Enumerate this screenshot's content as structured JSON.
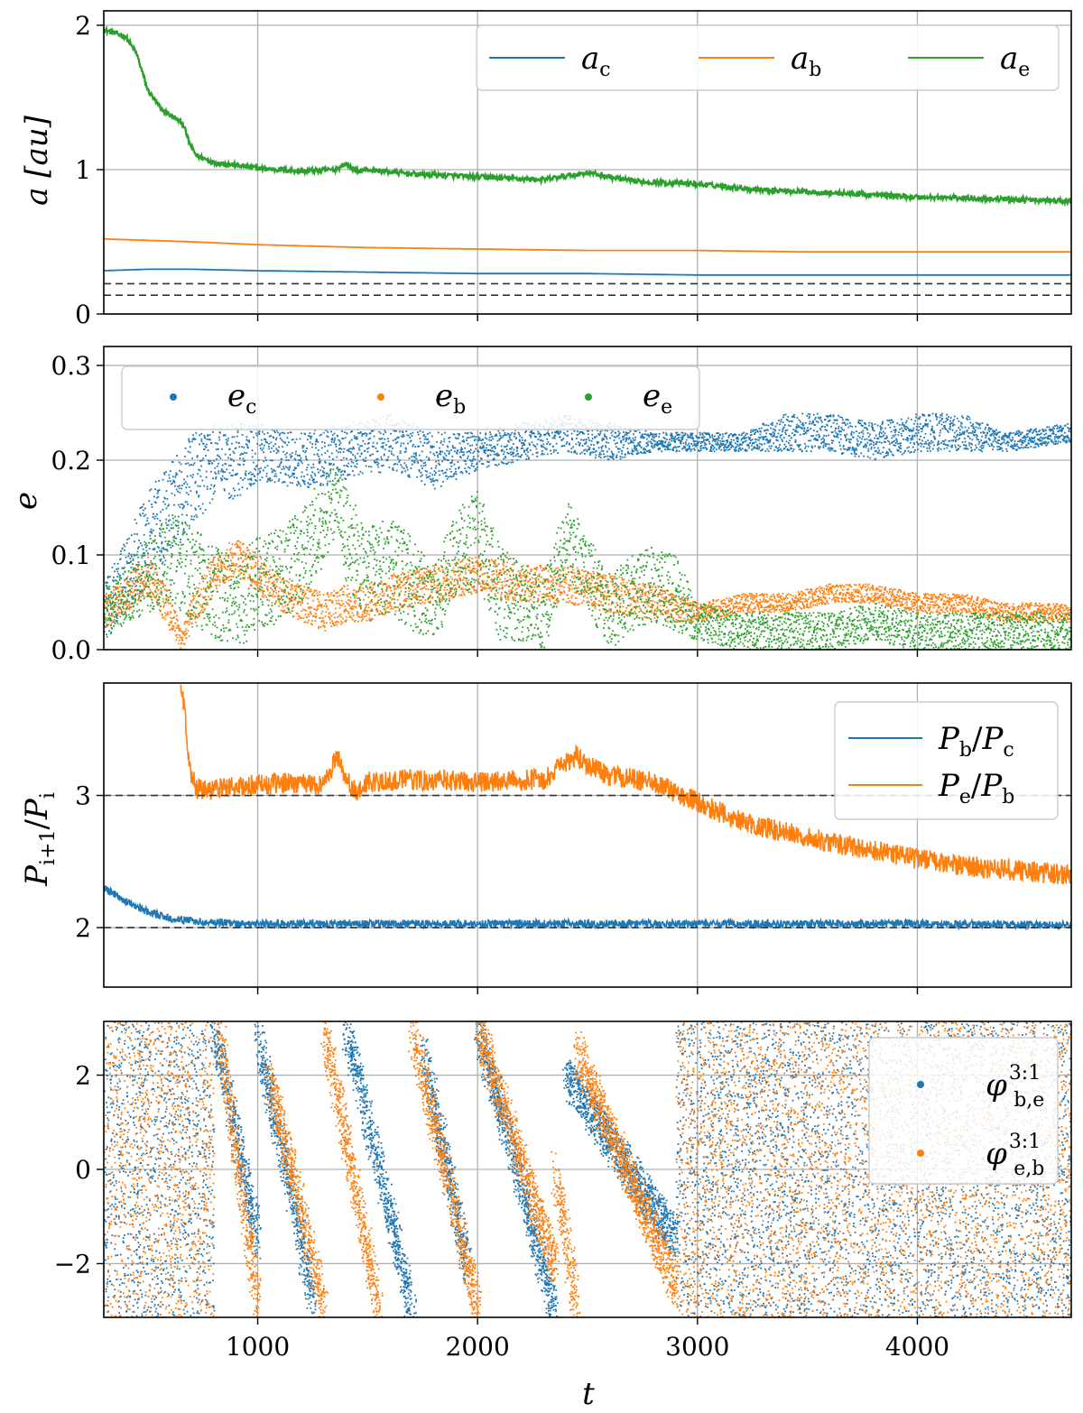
{
  "figure": {
    "xlabel": "t"
  },
  "chart_data": [
    {
      "type": "line",
      "panel": "semi-major axis",
      "ylabel": "a [au]",
      "xlim": [
        300,
        4700
      ],
      "ylim": [
        0,
        2.1
      ],
      "xticks": [
        1000,
        2000,
        3000,
        4000
      ],
      "xtick_labels": [
        "1000",
        "2000",
        "3000",
        "4000"
      ],
      "yticks": [
        0,
        1,
        2
      ],
      "ytick_labels": [
        "0",
        "1",
        "2"
      ],
      "grid": true,
      "legend_position": "top-right",
      "legend_columns": 3,
      "hlines": [
        0.21,
        0.13
      ],
      "series": [
        {
          "name": "a_c",
          "label_main": "a",
          "label_sub": "c",
          "color": "#1f77b4",
          "x": [
            300,
            500,
            700,
            1000,
            1500,
            2000,
            2500,
            3000,
            3500,
            4000,
            4700
          ],
          "y": [
            0.3,
            0.31,
            0.31,
            0.3,
            0.29,
            0.28,
            0.28,
            0.27,
            0.27,
            0.27,
            0.27
          ]
        },
        {
          "name": "a_b",
          "label_main": "a",
          "label_sub": "b",
          "color": "#ff7f0e",
          "x": [
            300,
            500,
            700,
            1000,
            1500,
            2000,
            2500,
            3000,
            3500,
            4000,
            4700
          ],
          "y": [
            0.52,
            0.51,
            0.5,
            0.48,
            0.46,
            0.45,
            0.44,
            0.44,
            0.43,
            0.43,
            0.43
          ]
        },
        {
          "name": "a_e",
          "label_main": "a",
          "label_sub": "e",
          "color": "#2ca02c",
          "x": [
            300,
            400,
            450,
            500,
            560,
            600,
            660,
            690,
            720,
            800,
            1000,
            1200,
            1350,
            1400,
            1450,
            1500,
            1700,
            2000,
            2300,
            2500,
            2700,
            3000,
            3300,
            3600,
            4000,
            4300,
            4700
          ],
          "y": [
            1.97,
            1.92,
            1.8,
            1.55,
            1.42,
            1.38,
            1.32,
            1.18,
            1.1,
            1.05,
            1.01,
            0.99,
            1.0,
            1.04,
            0.99,
            1.0,
            0.97,
            0.95,
            0.93,
            0.98,
            0.92,
            0.9,
            0.86,
            0.84,
            0.81,
            0.8,
            0.78
          ]
        }
      ]
    },
    {
      "type": "scatter",
      "panel": "eccentricity",
      "ylabel": "e",
      "xlim": [
        300,
        4700
      ],
      "ylim": [
        0,
        0.32
      ],
      "xticks": [
        1000,
        2000,
        3000,
        4000
      ],
      "yticks": [
        0.0,
        0.1,
        0.2,
        0.3
      ],
      "ytick_labels": [
        "0.0",
        "0.1",
        "0.2",
        "0.3"
      ],
      "grid": true,
      "legend_position": "top-left",
      "legend_columns": 3,
      "series": [
        {
          "name": "e_c",
          "label_main": "e",
          "label_sub": "c",
          "color": "#1f77b4",
          "x": [
            300,
            400,
            500,
            600,
            700,
            800,
            900,
            1000,
            1200,
            1400,
            1600,
            1800,
            2000,
            2200,
            2400,
            2600,
            2800,
            3000,
            3200,
            3400,
            3600,
            3800,
            4000,
            4200,
            4400,
            4700
          ],
          "y": [
            0.04,
            0.08,
            0.12,
            0.15,
            0.18,
            0.2,
            0.2,
            0.21,
            0.2,
            0.21,
            0.22,
            0.2,
            0.21,
            0.22,
            0.23,
            0.22,
            0.22,
            0.22,
            0.22,
            0.23,
            0.23,
            0.22,
            0.23,
            0.23,
            0.22,
            0.23
          ],
          "spread": [
            0.03,
            0.04,
            0.05,
            0.05,
            0.05,
            0.04,
            0.04,
            0.03,
            0.03,
            0.03,
            0.03,
            0.03,
            0.02,
            0.02,
            0.02,
            0.02,
            0.01,
            0.01,
            0.01,
            0.02,
            0.02,
            0.02,
            0.02,
            0.02,
            0.01,
            0.01
          ]
        },
        {
          "name": "e_b",
          "label_main": "e",
          "label_sub": "b",
          "color": "#ff7f0e",
          "x": [
            300,
            400,
            500,
            600,
            650,
            700,
            800,
            900,
            1000,
            1100,
            1200,
            1300,
            1400,
            1500,
            1600,
            1800,
            2000,
            2200,
            2400,
            2600,
            2800,
            3000,
            3200,
            3400,
            3600,
            3800,
            4000,
            4200,
            4400,
            4700
          ],
          "y": [
            0.04,
            0.06,
            0.08,
            0.04,
            0.01,
            0.04,
            0.08,
            0.1,
            0.08,
            0.06,
            0.05,
            0.04,
            0.05,
            0.05,
            0.06,
            0.07,
            0.08,
            0.07,
            0.07,
            0.06,
            0.05,
            0.04,
            0.05,
            0.05,
            0.06,
            0.06,
            0.05,
            0.05,
            0.04,
            0.04
          ],
          "spread": [
            0.02,
            0.02,
            0.02,
            0.02,
            0.01,
            0.02,
            0.02,
            0.02,
            0.02,
            0.02,
            0.02,
            0.02,
            0.02,
            0.02,
            0.02,
            0.02,
            0.02,
            0.02,
            0.02,
            0.02,
            0.02,
            0.01,
            0.01,
            0.01,
            0.01,
            0.01,
            0.01,
            0.01,
            0.01,
            0.01
          ]
        },
        {
          "name": "e_e",
          "label_main": "e",
          "label_sub": "e",
          "color": "#2ca02c",
          "x": [
            300,
            400,
            500,
            600,
            700,
            800,
            900,
            1000,
            1100,
            1200,
            1300,
            1350,
            1400,
            1500,
            1600,
            1700,
            1800,
            1900,
            2000,
            2100,
            2200,
            2300,
            2400,
            2500,
            2600,
            2700,
            2800,
            2900,
            3000,
            3200,
            3400,
            3600,
            3800,
            4000,
            4200,
            4400,
            4700
          ],
          "y": [
            0.04,
            0.06,
            0.08,
            0.1,
            0.08,
            0.06,
            0.05,
            0.07,
            0.08,
            0.1,
            0.14,
            0.16,
            0.12,
            0.08,
            0.09,
            0.07,
            0.05,
            0.1,
            0.12,
            0.06,
            0.05,
            0.04,
            0.12,
            0.08,
            0.04,
            0.06,
            0.07,
            0.06,
            0.03,
            0.02,
            0.02,
            0.02,
            0.03,
            0.02,
            0.02,
            0.02,
            0.02
          ],
          "spread": [
            0.03,
            0.03,
            0.04,
            0.05,
            0.05,
            0.05,
            0.05,
            0.05,
            0.05,
            0.05,
            0.05,
            0.04,
            0.05,
            0.05,
            0.05,
            0.05,
            0.04,
            0.05,
            0.05,
            0.05,
            0.04,
            0.04,
            0.04,
            0.04,
            0.04,
            0.04,
            0.04,
            0.04,
            0.02,
            0.02,
            0.02,
            0.02,
            0.02,
            0.02,
            0.02,
            0.02,
            0.02
          ]
        }
      ]
    },
    {
      "type": "line",
      "panel": "period ratio",
      "ylabel": "P_{i+1}/P_i",
      "ylabel_parts": {
        "p1": "P",
        "sub1": "i+1",
        "slash": "/",
        "p2": "P",
        "sub2": "i"
      },
      "xlim": [
        300,
        4700
      ],
      "ylim": [
        1.55,
        3.85
      ],
      "xticks": [
        1000,
        2000,
        3000,
        4000
      ],
      "yticks": [
        2,
        3
      ],
      "ytick_labels": [
        "2",
        "3"
      ],
      "grid": true,
      "legend_position": "top-right",
      "legend_columns": 1,
      "hlines": [
        2,
        3
      ],
      "series": [
        {
          "name": "P_b/P_c",
          "label_main": "P",
          "label_sub": "b",
          "label_mid": "/",
          "label_main2": "P",
          "label_sub2": "c",
          "color": "#1f77b4",
          "x": [
            300,
            400,
            500,
            600,
            700,
            800,
            900,
            1000,
            1500,
            2000,
            2500,
            3000,
            3500,
            4000,
            4700
          ],
          "y": [
            2.3,
            2.2,
            2.12,
            2.07,
            2.05,
            2.04,
            2.03,
            2.03,
            2.03,
            2.03,
            2.03,
            2.03,
            2.03,
            2.03,
            2.02
          ],
          "noise": 0.03
        },
        {
          "name": "P_e/P_b",
          "label_main": "P",
          "label_sub": "e",
          "label_mid": "/",
          "label_main2": "P",
          "label_sub2": "b",
          "color": "#ff7f0e",
          "x": [
            650,
            670,
            690,
            720,
            800,
            1000,
            1200,
            1300,
            1360,
            1400,
            1450,
            1500,
            1700,
            2000,
            2300,
            2450,
            2500,
            2600,
            2800,
            3000,
            3200,
            3400,
            3600,
            3800,
            4000,
            4300,
            4700
          ],
          "y": [
            3.85,
            3.6,
            3.2,
            3.05,
            3.05,
            3.08,
            3.1,
            3.08,
            3.3,
            3.15,
            3.0,
            3.1,
            3.12,
            3.1,
            3.12,
            3.3,
            3.22,
            3.15,
            3.1,
            2.95,
            2.8,
            2.72,
            2.65,
            2.58,
            2.52,
            2.45,
            2.4
          ],
          "noise": 0.08
        }
      ]
    },
    {
      "type": "scatter",
      "panel": "resonant angles",
      "ylabel": "",
      "xlim": [
        300,
        4700
      ],
      "ylim": [
        -3.14,
        3.14
      ],
      "xticks": [
        1000,
        2000,
        3000,
        4000
      ],
      "xtick_labels": [
        "1000",
        "2000",
        "3000",
        "4000"
      ],
      "yticks": [
        -2,
        0,
        2
      ],
      "ytick_labels": [
        "−2",
        "0",
        "2"
      ],
      "grid": true,
      "legend_position": "top-right",
      "legend_columns": 1,
      "series": [
        {
          "name": "phi_be_31",
          "label_main": "φ",
          "label_sub": "b,e",
          "label_sup": "3:1",
          "color": "#1f77b4",
          "circulating_ranges": [
            [
              300,
              800
            ],
            [
              2900,
              4700
            ]
          ],
          "librating_segments": [
            {
              "x0": 800,
              "x1": 1000,
              "y0": 3.0,
              "y1": -1.5
            },
            {
              "x0": 1000,
              "x1": 1250,
              "y0": 2.8,
              "y1": -2.8
            },
            {
              "x0": 1400,
              "x1": 1700,
              "y0": 3.0,
              "y1": -3.0
            },
            {
              "x0": 1750,
              "x1": 1950,
              "y0": 2.5,
              "y1": -2.0
            },
            {
              "x0": 2000,
              "x1": 2350,
              "y0": 3.0,
              "y1": -3.0
            },
            {
              "x0": 2400,
              "x1": 2900,
              "y0": 2.0,
              "y1": -1.5
            }
          ]
        },
        {
          "name": "phi_eb_31",
          "label_main": "φ",
          "label_sub": "e,b",
          "label_sup": "3:1",
          "color": "#ff7f0e",
          "circulating_ranges": [
            [
              300,
              800
            ],
            [
              2900,
              4700
            ]
          ],
          "librating_segments": [
            {
              "x0": 820,
              "x1": 1000,
              "y0": 3.0,
              "y1": -3.0
            },
            {
              "x0": 1050,
              "x1": 1300,
              "y0": 2.0,
              "y1": -3.0
            },
            {
              "x0": 1300,
              "x1": 1550,
              "y0": 3.0,
              "y1": -3.0
            },
            {
              "x0": 1700,
              "x1": 2000,
              "y0": 3.0,
              "y1": -3.0
            },
            {
              "x0": 2000,
              "x1": 2350,
              "y0": 3.0,
              "y1": -2.0
            },
            {
              "x0": 2350,
              "x1": 2450,
              "y0": 0.0,
              "y1": -3.0
            },
            {
              "x0": 2450,
              "x1": 2900,
              "y0": 2.5,
              "y1": -2.5
            }
          ]
        }
      ]
    }
  ]
}
